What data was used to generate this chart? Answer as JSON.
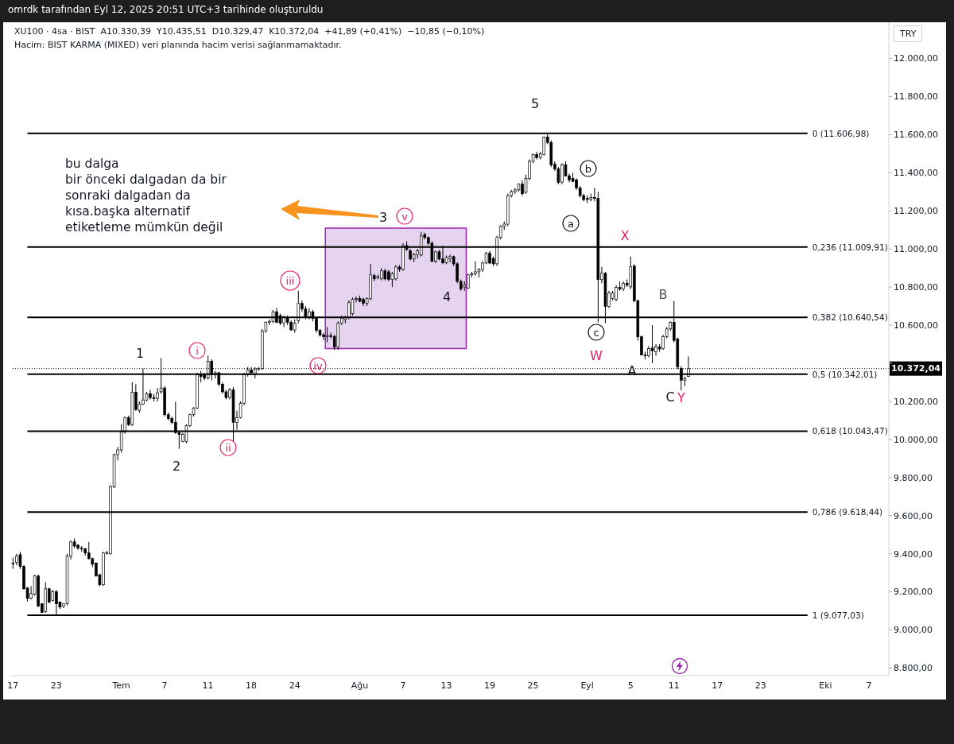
{
  "chart_data": {
    "type": "candlestick",
    "title": "XU100 · 4sa · BIST  A10.330,39  Y10.435,51  D10.329,47  K10.372,04  +41,89 (+0,41%)  −10,85 (−0,10%)",
    "subtitle": "Hacim: BIST KARMA (MIXED) veri planında hacim verisi sağlanmamaktadır.",
    "ylabel": "TRY",
    "categories": [
      "17",
      null,
      null,
      null,
      null,
      null,
      null,
      null,
      null,
      null,
      null,
      null,
      "23",
      null,
      null,
      null,
      null,
      null,
      null,
      null,
      null,
      null,
      null,
      null,
      null,
      null,
      null,
      null,
      null,
      null,
      "Tem",
      null,
      null,
      null,
      null,
      null,
      null,
      null,
      null,
      null,
      null,
      null,
      "7",
      null,
      null,
      null,
      null,
      null,
      null,
      null,
      null,
      null,
      null,
      null,
      "11",
      null,
      null,
      null,
      null,
      null,
      null,
      null,
      null,
      null,
      null,
      null,
      "18",
      null,
      null,
      null,
      null,
      null,
      null,
      null,
      null,
      null,
      null,
      null,
      "24",
      null,
      null,
      null,
      null,
      null,
      null,
      null,
      null,
      null,
      null,
      null,
      null,
      null,
      null,
      null,
      null,
      null,
      "Ağu",
      null,
      null,
      null,
      null,
      null,
      null,
      null,
      null,
      null,
      null,
      null,
      "7",
      null,
      null,
      null,
      null,
      null,
      null,
      null,
      null,
      null,
      null,
      null,
      "13",
      null,
      null,
      null,
      null,
      null,
      null,
      null,
      null,
      null,
      null,
      null,
      "19",
      null,
      null,
      null,
      null,
      null,
      null,
      null,
      null,
      null,
      null,
      null,
      "25",
      null,
      null,
      null,
      null,
      null,
      null,
      null,
      null,
      null,
      null,
      null,
      null,
      null,
      null,
      "Eyl",
      null,
      null,
      null,
      null,
      null,
      null,
      null,
      null,
      null,
      null,
      null,
      "5",
      null,
      null,
      null,
      null,
      null,
      null,
      null,
      null,
      null,
      null,
      null,
      "11",
      null,
      null,
      null,
      null,
      null,
      null,
      null,
      null,
      null,
      null,
      null,
      "17",
      null,
      null,
      null,
      null,
      null,
      null,
      null,
      null,
      null,
      null,
      null,
      "23",
      null,
      null,
      null,
      null,
      null,
      null,
      null,
      null,
      null,
      null,
      null,
      null,
      null,
      null,
      null,
      null,
      null,
      "Eki",
      null,
      null,
      null,
      null,
      null,
      null,
      null,
      null,
      null,
      null,
      null,
      "7",
      null,
      null,
      null,
      null,
      null
    ],
    "ohlc": [
      [
        9350,
        9380,
        9320,
        9350
      ],
      [
        9354,
        9400,
        9340,
        9387
      ],
      [
        9395,
        9410,
        9320,
        9333
      ],
      [
        9333,
        9340,
        9210,
        9216
      ],
      [
        9220,
        9225,
        9150,
        9166
      ],
      [
        9166,
        9230,
        9160,
        9190
      ],
      [
        9187,
        9290,
        9180,
        9283
      ],
      [
        9283,
        9290,
        9120,
        9125
      ],
      [
        9137,
        9140,
        9090,
        9092
      ],
      [
        9096,
        9250,
        9090,
        9216
      ],
      [
        9216,
        9220,
        9140,
        9146
      ],
      [
        9154,
        9210,
        9150,
        9200
      ],
      [
        9200,
        9210,
        9075,
        9137
      ],
      [
        9146,
        9150,
        9110,
        9120
      ],
      [
        9125,
        9140,
        9115,
        9137
      ],
      [
        9137,
        9400,
        9130,
        9387
      ],
      [
        9387,
        9470,
        9370,
        9462
      ],
      [
        9462,
        9480,
        9430,
        9440
      ],
      [
        9445,
        9450,
        9420,
        9430
      ],
      [
        9430,
        9440,
        9410,
        9425
      ],
      [
        9425,
        9430,
        9390,
        9404
      ],
      [
        9404,
        9462,
        9370,
        9374
      ],
      [
        9374,
        9380,
        9330,
        9345
      ],
      [
        9350,
        9355,
        9280,
        9283
      ],
      [
        9290,
        9295,
        9230,
        9237
      ],
      [
        9237,
        9410,
        9230,
        9404
      ],
      [
        9404,
        9415,
        9395,
        9405
      ],
      [
        9400,
        9760,
        9395,
        9753
      ],
      [
        9750,
        9925,
        9745,
        9920
      ],
      [
        9920,
        9960,
        9890,
        9945
      ],
      [
        9945,
        10080,
        9930,
        10040
      ],
      [
        10040,
        10120,
        10030,
        10115
      ],
      [
        10115,
        10125,
        10070,
        10078
      ],
      [
        10078,
        10300,
        10070,
        10248
      ],
      [
        10248,
        10290,
        10150,
        10157
      ],
      [
        10153,
        10200,
        10140,
        10186
      ],
      [
        10186,
        10373,
        10180,
        10207
      ],
      [
        10207,
        10250,
        10200,
        10240
      ],
      [
        10240,
        10260,
        10210,
        10220
      ],
      [
        10220,
        10240,
        10200,
        10215
      ],
      [
        10215,
        10270,
        10200,
        10245
      ],
      [
        10250,
        10427,
        10240,
        10270
      ],
      [
        10270,
        10280,
        10120,
        10130
      ],
      [
        10130,
        10140,
        10100,
        10110
      ],
      [
        10110,
        10120,
        10080,
        10090
      ],
      [
        10090,
        10198,
        10030,
        10036
      ],
      [
        10036,
        10045,
        9950,
        10027
      ],
      [
        9990,
        10035,
        9985,
        10027
      ],
      [
        9990,
        10080,
        9980,
        10073
      ],
      [
        10073,
        10135,
        10065,
        10130
      ],
      [
        10130,
        10170,
        10120,
        10165
      ],
      [
        10165,
        10350,
        10160,
        10340
      ],
      [
        10340,
        10360,
        10300,
        10330
      ],
      [
        10340,
        10350,
        10310,
        10322
      ],
      [
        10322,
        10440,
        10315,
        10410
      ],
      [
        10410,
        10420,
        10310,
        10340
      ],
      [
        10340,
        10360,
        10320,
        10350
      ],
      [
        10350,
        10355,
        10280,
        10290
      ],
      [
        10290,
        10300,
        10240,
        10250
      ],
      [
        10250,
        10260,
        10210,
        10220
      ],
      [
        10220,
        10270,
        10210,
        10260
      ],
      [
        10260,
        10275,
        9990,
        10090
      ],
      [
        10090,
        10150,
        10050,
        10115
      ],
      [
        10115,
        10200,
        10110,
        10190
      ],
      [
        10190,
        10350,
        10180,
        10340
      ],
      [
        10340,
        10380,
        10330,
        10365
      ],
      [
        10365,
        10380,
        10340,
        10350
      ],
      [
        10340,
        10380,
        10320,
        10370
      ],
      [
        10370,
        10380,
        10360,
        10372
      ],
      [
        10372,
        10580,
        10365,
        10570
      ],
      [
        10570,
        10620,
        10560,
        10615
      ],
      [
        10615,
        10630,
        10600,
        10620
      ],
      [
        10620,
        10680,
        10610,
        10670
      ],
      [
        10670,
        10690,
        10610,
        10615
      ],
      [
        10650,
        10660,
        10600,
        10610
      ],
      [
        10610,
        10650,
        10590,
        10640
      ],
      [
        10640,
        10650,
        10600,
        10615
      ],
      [
        10615,
        10625,
        10570,
        10575
      ],
      [
        10575,
        10630,
        10560,
        10610
      ],
      [
        10623,
        10781,
        10610,
        10714
      ],
      [
        10714,
        10730,
        10670,
        10685
      ],
      [
        10685,
        10700,
        10630,
        10644
      ],
      [
        10644,
        10690,
        10630,
        10670
      ],
      [
        10670,
        10680,
        10620,
        10635
      ],
      [
        10635,
        10640,
        10560,
        10573
      ],
      [
        10573,
        10580,
        10540,
        10548
      ],
      [
        10548,
        10560,
        10520,
        10540
      ],
      [
        10540,
        10590,
        10510,
        10545
      ],
      [
        10545,
        10560,
        10530,
        10540
      ],
      [
        10540,
        10550,
        10470,
        10485
      ],
      [
        10485,
        10620,
        10470,
        10610
      ],
      [
        10610,
        10650,
        10600,
        10635
      ],
      [
        10630,
        10650,
        10610,
        10640
      ],
      [
        10640,
        10730,
        10630,
        10718
      ],
      [
        10660,
        10745,
        10650,
        10735
      ],
      [
        10735,
        10750,
        10720,
        10740
      ],
      [
        10740,
        10755,
        10720,
        10725
      ],
      [
        10735,
        10745,
        10700,
        10715
      ],
      [
        10715,
        10745,
        10700,
        10740
      ],
      [
        10740,
        10922,
        10730,
        10864
      ],
      [
        10860,
        10870,
        10830,
        10843
      ],
      [
        10850,
        10865,
        10840,
        10855
      ],
      [
        10843,
        10900,
        10835,
        10885
      ],
      [
        10885,
        10895,
        10835,
        10843
      ],
      [
        10880,
        10890,
        10830,
        10840
      ],
      [
        10840,
        10880,
        10800,
        10870
      ],
      [
        10843,
        10915,
        10835,
        10905
      ],
      [
        10905,
        10915,
        10880,
        10893
      ],
      [
        10893,
        11030,
        10885,
        11018
      ],
      [
        11018,
        11040,
        10990,
        10997
      ],
      [
        10990,
        11000,
        10940,
        10947
      ],
      [
        10947,
        10980,
        10930,
        10970
      ],
      [
        10970,
        11000,
        10950,
        10990
      ],
      [
        10968,
        11090,
        10960,
        11068
      ],
      [
        11076,
        11085,
        11050,
        11060
      ],
      [
        11060,
        11065,
        11020,
        11030
      ],
      [
        11030,
        11040,
        10930,
        10935
      ],
      [
        10935,
        10990,
        10925,
        10985
      ],
      [
        10985,
        10995,
        10940,
        10947
      ],
      [
        10947,
        11018,
        10920,
        10927
      ],
      [
        10927,
        10965,
        10920,
        10955
      ],
      [
        10950,
        10970,
        10930,
        10960
      ],
      [
        10960,
        10965,
        10910,
        10922
      ],
      [
        10922,
        10930,
        10820,
        10830
      ],
      [
        10830,
        10840,
        10780,
        10790
      ],
      [
        10800,
        10830,
        10780,
        10810
      ],
      [
        10794,
        10870,
        10790,
        10864
      ],
      [
        10864,
        10880,
        10850,
        10870
      ],
      [
        10870,
        10935,
        10860,
        10880
      ],
      [
        10880,
        10900,
        10850,
        10890
      ],
      [
        10890,
        10935,
        10880,
        10926
      ],
      [
        10926,
        10985,
        10920,
        10977
      ],
      [
        10977,
        10990,
        10920,
        10926
      ],
      [
        10950,
        10960,
        10910,
        10922
      ],
      [
        10922,
        11070,
        10910,
        11060
      ],
      [
        11060,
        11125,
        11050,
        11118
      ],
      [
        11118,
        11145,
        11100,
        11130
      ],
      [
        11130,
        11290,
        11120,
        11280
      ],
      [
        11280,
        11310,
        11270,
        11301
      ],
      [
        11301,
        11320,
        11290,
        11310
      ],
      [
        11310,
        11345,
        11300,
        11340
      ],
      [
        11340,
        11360,
        11280,
        11290
      ],
      [
        11297,
        11390,
        11290,
        11370
      ],
      [
        11370,
        11470,
        11360,
        11460
      ],
      [
        11460,
        11500,
        11450,
        11495
      ],
      [
        11495,
        11510,
        11470,
        11480
      ],
      [
        11480,
        11510,
        11470,
        11500
      ],
      [
        11495,
        11590,
        11490,
        11588
      ],
      [
        11588,
        11601,
        11550,
        11559
      ],
      [
        11559,
        11570,
        11430,
        11442
      ],
      [
        11445,
        11460,
        11410,
        11420
      ],
      [
        11420,
        11430,
        11340,
        11350
      ],
      [
        11351,
        11450,
        11340,
        11442
      ],
      [
        11442,
        11460,
        11380,
        11384
      ],
      [
        11384,
        11395,
        11350,
        11363
      ],
      [
        11370,
        11400,
        11350,
        11355
      ],
      [
        11363,
        11370,
        11310,
        11320
      ],
      [
        11320,
        11330,
        11270,
        11280
      ],
      [
        11280,
        11290,
        11250,
        11259
      ],
      [
        11265,
        11280,
        11240,
        11260
      ],
      [
        11260,
        11290,
        11250,
        11270
      ],
      [
        11270,
        11320,
        11250,
        11265
      ],
      [
        11265,
        11300,
        10614,
        10839
      ],
      [
        10839,
        10906,
        10820,
        10872
      ],
      [
        10872,
        10880,
        10610,
        10698
      ],
      [
        10698,
        10780,
        10690,
        10768
      ],
      [
        10740,
        10780,
        10730,
        10770
      ],
      [
        10735,
        10810,
        10725,
        10798
      ],
      [
        10798,
        10830,
        10780,
        10790
      ],
      [
        10790,
        10830,
        10780,
        10820
      ],
      [
        10820,
        10840,
        10800,
        10810
      ],
      [
        10801,
        10960,
        10790,
        10906
      ],
      [
        10910,
        10920,
        10720,
        10727
      ],
      [
        10727,
        10735,
        10520,
        10539
      ],
      [
        10539,
        10545,
        10440,
        10444
      ],
      [
        10444,
        10460,
        10420,
        10440
      ],
      [
        10440,
        10490,
        10430,
        10477
      ],
      [
        10480,
        10600,
        10400,
        10465
      ],
      [
        10460,
        10500,
        10440,
        10485
      ],
      [
        10485,
        10500,
        10460,
        10475
      ],
      [
        10477,
        10550,
        10470,
        10540
      ],
      [
        10540,
        10590,
        10530,
        10580
      ],
      [
        10580,
        10620,
        10570,
        10615
      ],
      [
        10615,
        10727,
        10510,
        10520
      ],
      [
        10527,
        10535,
        10370,
        10380
      ],
      [
        10373,
        10385,
        10257,
        10311
      ],
      [
        10311,
        10330,
        10280,
        10320
      ],
      [
        10330.39,
        10435.51,
        10329.47,
        10372.04
      ],
      null,
      null,
      null,
      null,
      null,
      null,
      null,
      null,
      null,
      null,
      null,
      null,
      null,
      null,
      null,
      null,
      null,
      null,
      null,
      null,
      null,
      null,
      null,
      null,
      null,
      null,
      null,
      null,
      null,
      null,
      null,
      null,
      null,
      null,
      null,
      null,
      null,
      null,
      null,
      null,
      null,
      null,
      null,
      null,
      null,
      null,
      null,
      null,
      null,
      null,
      null,
      null,
      null,
      null,
      null
    ],
    "ylim": [
      8760,
      12190
    ],
    "yticks": [
      {
        "value": 8800,
        "label": "8.800,00"
      },
      {
        "value": 9000,
        "label": "9.000,00"
      },
      {
        "value": 9200,
        "label": "9.200,00"
      },
      {
        "value": 9400,
        "label": "9.400,00"
      },
      {
        "value": 9600,
        "label": "9.600,00"
      },
      {
        "value": 9800,
        "label": "9.800,00"
      },
      {
        "value": 10000,
        "label": "10.000,00"
      },
      {
        "value": 10200,
        "label": "10.200,00"
      },
      {
        "value": 10400,
        "label": null
      },
      {
        "value": 10600,
        "label": "10.600,00"
      },
      {
        "value": 10800,
        "label": "10.800,00"
      },
      {
        "value": 11000,
        "label": "11.000,00"
      },
      {
        "value": 11200,
        "label": "11.200,00"
      },
      {
        "value": 11400,
        "label": "11.400,00"
      },
      {
        "value": 11600,
        "label": "11.600,00"
      },
      {
        "value": 11800,
        "label": "11.800,00"
      },
      {
        "value": 12000,
        "label": "12.000,00"
      }
    ],
    "ref_lines": [
      {
        "axis": "y",
        "value": 11606.98,
        "label": "0 (11.606,98)",
        "color": "#000000",
        "line_style": "solid"
      },
      {
        "axis": "y",
        "value": 11009.91,
        "label": "0,236 (11.009,91)",
        "color": "#000000",
        "line_style": "solid"
      },
      {
        "axis": "y",
        "value": 10640.54,
        "label": "0,382 (10.640,54)",
        "color": "#000000",
        "line_style": "solid"
      },
      {
        "axis": "y",
        "value": 10342.01,
        "label": "0,5 (10.342,01)",
        "color": "#000000",
        "line_style": "solid"
      },
      {
        "axis": "y",
        "value": 10043.47,
        "label": "0,618 (10.043,47)",
        "color": "#000000",
        "line_style": "solid"
      },
      {
        "axis": "y",
        "value": 9618.44,
        "label": "0,786 (9.618,44)",
        "color": "#000000",
        "line_style": "solid"
      },
      {
        "axis": "y",
        "value": 9077.03,
        "label": "1 (9.077,03)",
        "color": "#000000",
        "line_style": "solid"
      },
      {
        "axis": "y",
        "value": 10372.04,
        "label": "10.372,04",
        "color": "#000000",
        "line_style": "dotted"
      }
    ],
    "bands": [
      {
        "axis": "y",
        "from": 10477,
        "to": 11109,
        "color": "#e6d3ef"
      }
    ],
    "annotations": [
      "omrdk tarafından Eyl 12, 2025 20:51 UTC+3 tarihinde oluşturuldu",
      "bu dalga\nbir önceki dalgadan da bir\nsonraki dalgadan da\nkısa.başka alternatif\netiketleme mümkün değil",
      "5",
      "3",
      "v",
      "4",
      "1",
      "2",
      "i",
      "ii",
      "iii",
      "iv",
      "b",
      "a",
      "c",
      "X",
      "W",
      "B",
      "A",
      "C",
      "Y"
    ]
  }
}
